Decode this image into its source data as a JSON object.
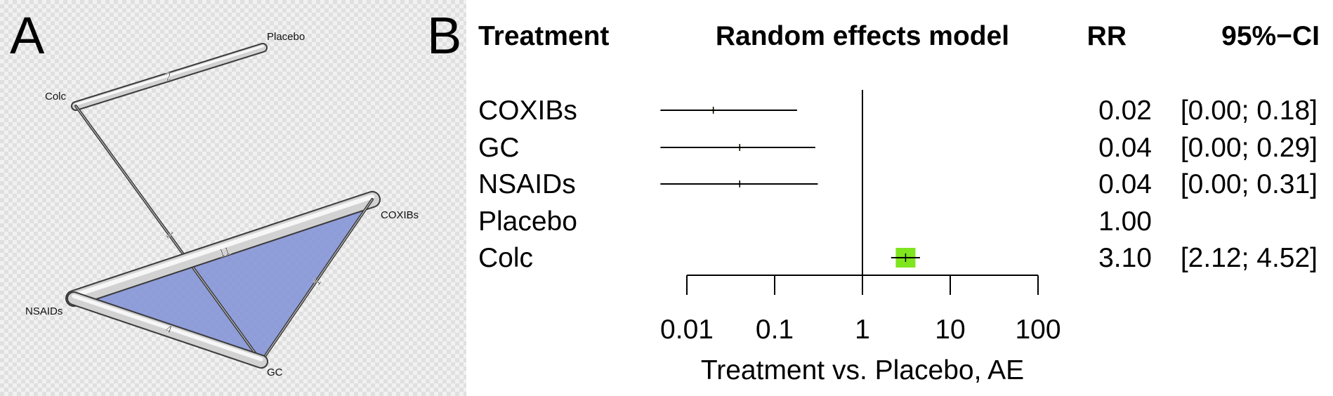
{
  "chart_data": [
    {
      "type": "network",
      "panel_label": "A",
      "nodes": [
        "Placebo",
        "Colc",
        "COXIBs",
        "NSAIDs",
        "GC"
      ],
      "edges": [
        {
          "from": "Colc",
          "to": "Placebo",
          "label": "2"
        },
        {
          "from": "Colc",
          "to": "GC",
          "label": "1"
        },
        {
          "from": "NSAIDs",
          "to": "COXIBs",
          "label": "11"
        },
        {
          "from": "COXIBs",
          "to": "GC",
          "label": "1"
        },
        {
          "from": "NSAIDs",
          "to": "GC",
          "label": "4"
        }
      ],
      "multi_arm_fill": "#7f8fd6"
    },
    {
      "type": "forest",
      "panel_label": "B",
      "headers": {
        "treatment": "Treatment",
        "model": "Random effects model",
        "rr": "RR",
        "ci": "95%−CI"
      },
      "xlabel": "Treatment vs. Placebo, AE",
      "x_scale": "log",
      "xlim": [
        0.01,
        100
      ],
      "reference": 1,
      "ticks": [
        0.01,
        0.1,
        1,
        10,
        100
      ],
      "tick_labels": [
        "0.01",
        "0.1",
        "1",
        "10",
        "100"
      ],
      "rows": [
        {
          "name": "COXIBs",
          "rr": 0.02,
          "lower": 0.0,
          "upper": 0.18,
          "rr_label": "0.02",
          "ci_label": "[0.00; 0.18]"
        },
        {
          "name": "GC",
          "rr": 0.04,
          "lower": 0.0,
          "upper": 0.29,
          "rr_label": "0.04",
          "ci_label": "[0.00; 0.29]"
        },
        {
          "name": "NSAIDs",
          "rr": 0.04,
          "lower": 0.0,
          "upper": 0.31,
          "rr_label": "0.04",
          "ci_label": "[0.00; 0.31]"
        },
        {
          "name": "Placebo",
          "rr": null,
          "lower": null,
          "upper": null,
          "rr_label": "1.00",
          "ci_label": ""
        },
        {
          "name": "Colc",
          "rr": 3.1,
          "lower": 2.12,
          "upper": 4.52,
          "rr_label": "3.10",
          "ci_label": "[2.12; 4.52]"
        }
      ],
      "box_color": "#7ee51e"
    }
  ]
}
